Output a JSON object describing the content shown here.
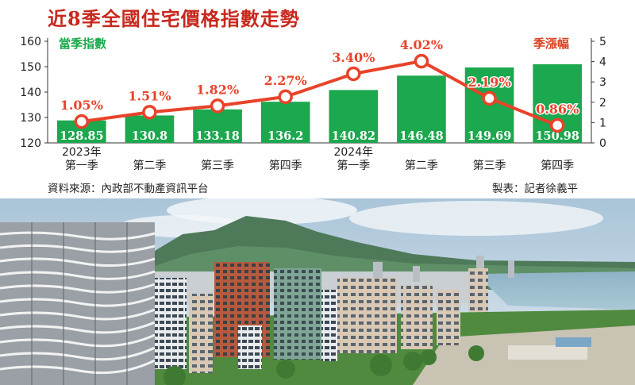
{
  "title": "近8季全國住宅價格指數走勢",
  "legend": {
    "left": "當季指數",
    "right": "季漲幅"
  },
  "source": "資料來源：內政部不動產資訊平台",
  "credit": "製表：記者徐義平",
  "colors": {
    "bar": "#1ba84e",
    "line": "#e8432a",
    "title": "#c8281e",
    "pct_label": "#e8432a"
  },
  "chart_data": {
    "type": "bar",
    "categories": [
      "第一季",
      "第二季",
      "第三季",
      "第四季",
      "第一季",
      "第二季",
      "第三季",
      "第四季"
    ],
    "year_labels": [
      "2023年",
      "",
      "",
      "",
      "2024年",
      "",
      "",
      ""
    ],
    "series": [
      {
        "name": "當季指數",
        "type": "bar",
        "axis": "left",
        "values": [
          128.85,
          130.8,
          133.18,
          136.2,
          140.82,
          146.48,
          149.69,
          150.98
        ],
        "labels": [
          "128.85",
          "130.8",
          "133.18",
          "136.2",
          "140.82",
          "146.48",
          "149.69",
          "150.98"
        ]
      },
      {
        "name": "季漲幅",
        "type": "line",
        "axis": "right",
        "values": [
          1.05,
          1.51,
          1.82,
          2.27,
          3.4,
          4.02,
          2.19,
          0.86
        ],
        "labels": [
          "1.05%",
          "1.51%",
          "1.82%",
          "2.27%",
          "3.40%",
          "4.02%",
          "2.19%",
          "0.86%"
        ]
      }
    ],
    "y_left": {
      "ylim": [
        120,
        160
      ],
      "ticks": [
        "120",
        "130",
        "140",
        "150",
        "160"
      ]
    },
    "y_right": {
      "ylim": [
        0,
        5
      ],
      "ticks": [
        "0",
        "1",
        "2",
        "3",
        "4",
        "5"
      ]
    },
    "grid": false
  }
}
